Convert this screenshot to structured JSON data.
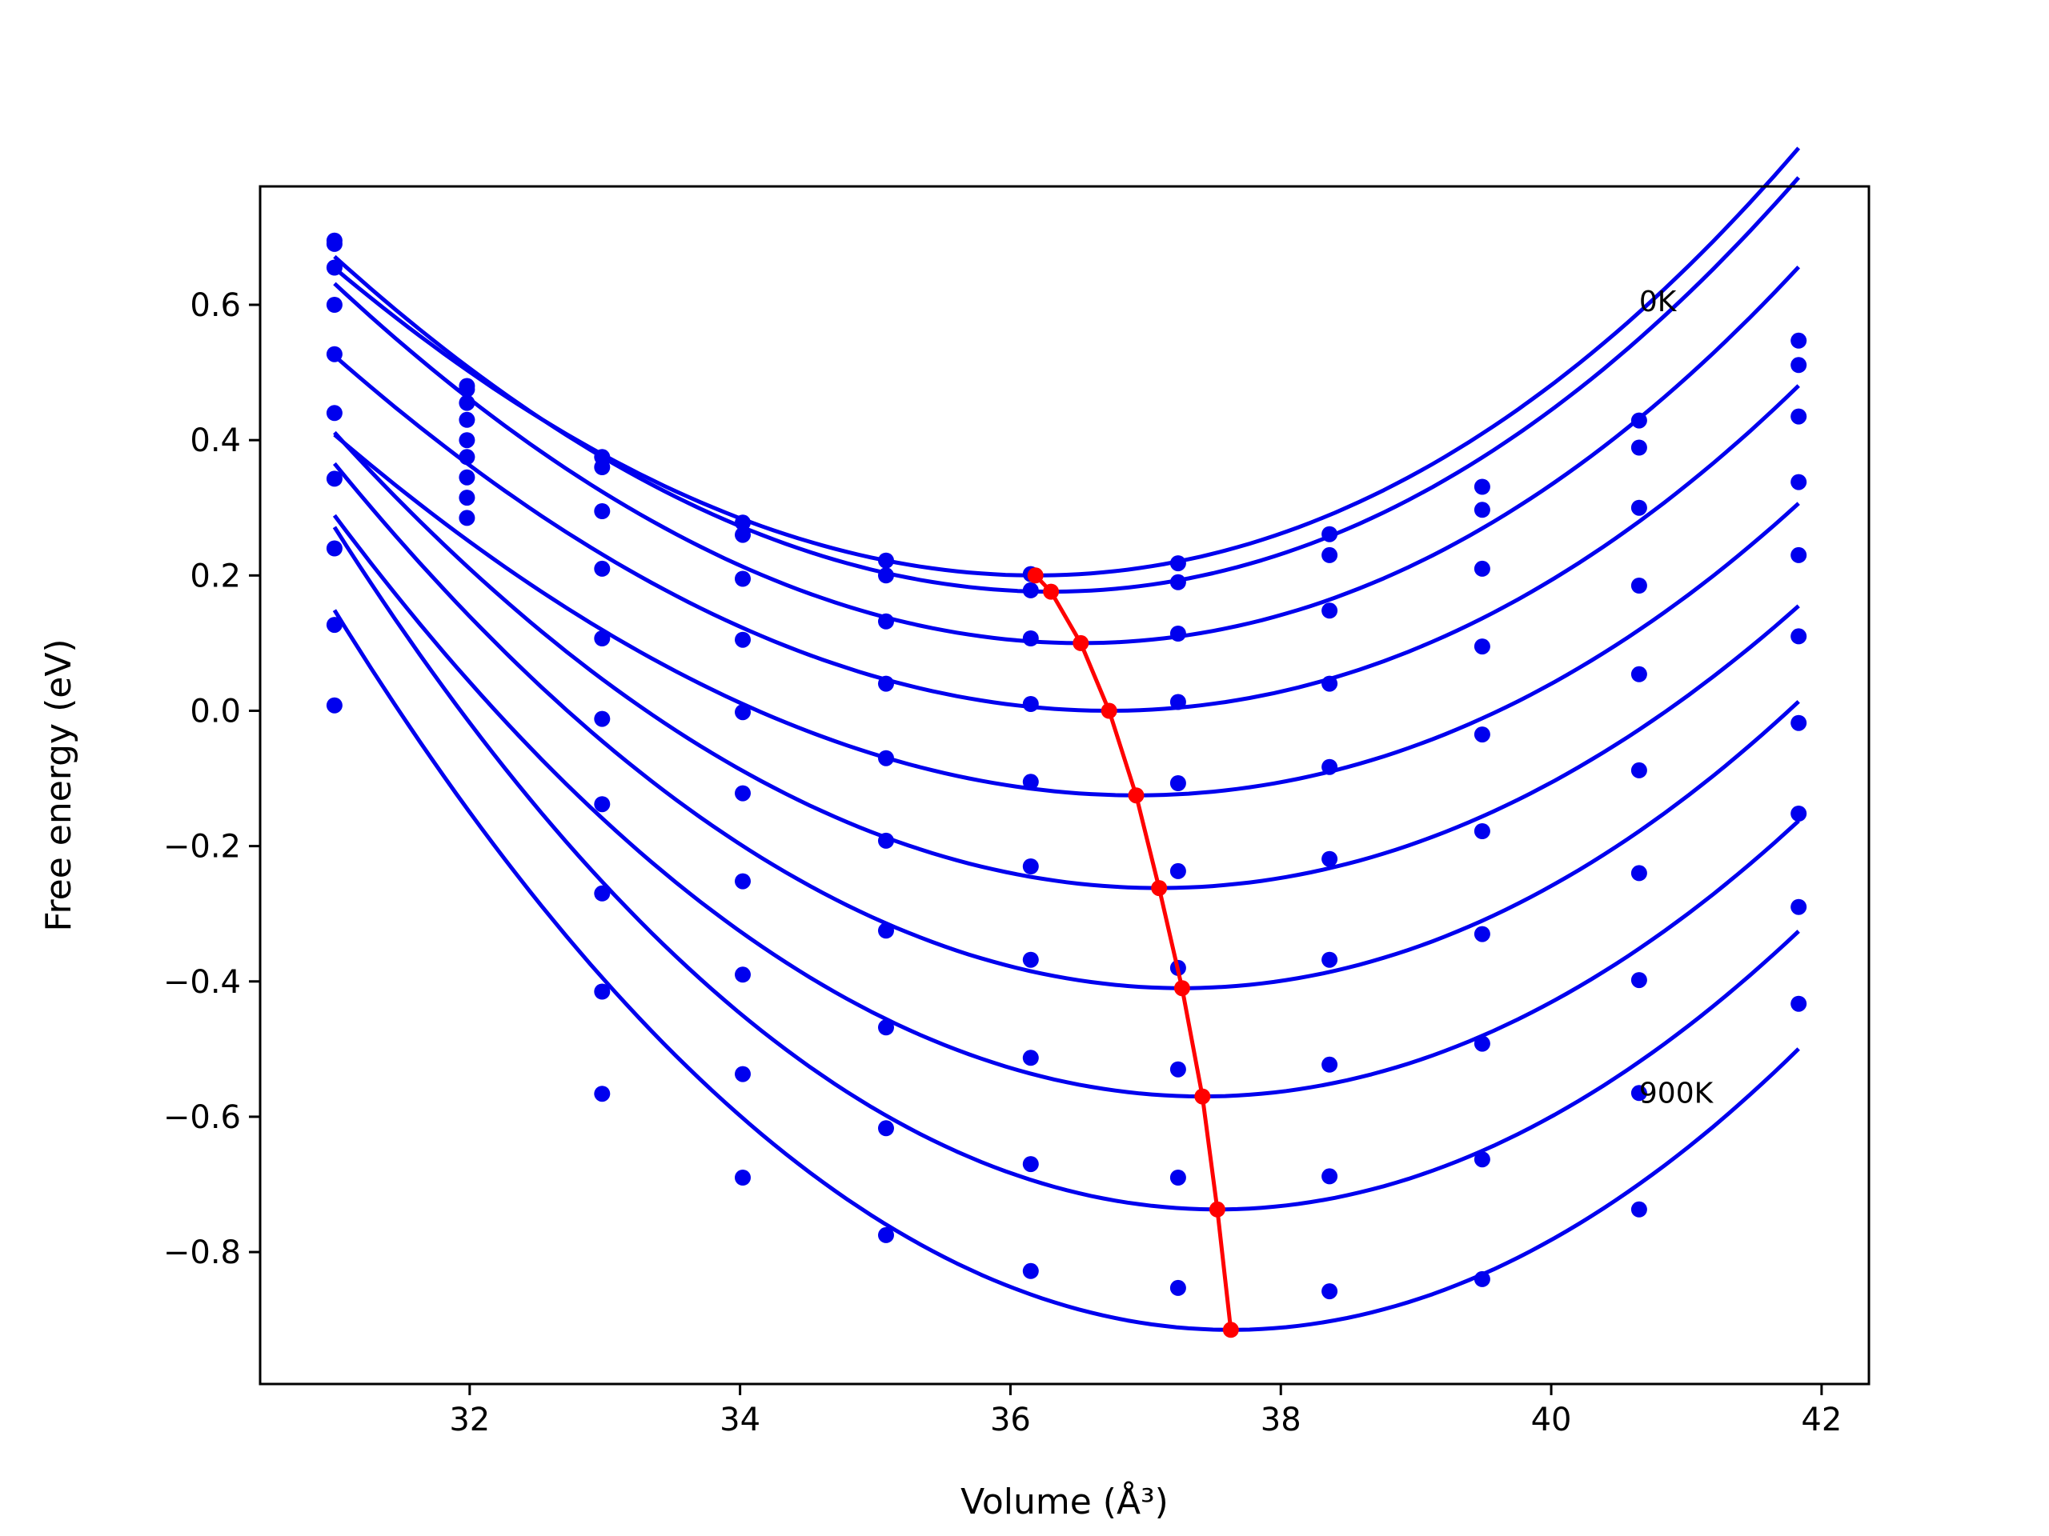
{
  "chart_data": {
    "type": "line",
    "title": "",
    "xlabel": "Volume (Å³)",
    "ylabel": "Free energy (eV)",
    "xlim": [
      30.45,
      42.35
    ],
    "ylim": [
      -0.995,
      0.775
    ],
    "grid": false,
    "legend": "none",
    "x_ticks": [
      32,
      34,
      36,
      38,
      40,
      42
    ],
    "x_tick_labels": [
      "32",
      "34",
      "36",
      "38",
      "40",
      "42"
    ],
    "y_ticks": [
      0.6,
      0.4,
      0.2,
      0.0,
      -0.2,
      -0.4,
      -0.6,
      -0.8
    ],
    "y_tick_labels": [
      "0.6",
      "0.4",
      "0.2",
      "0.0",
      "−0.2",
      "−0.4",
      "−0.6",
      "−0.8"
    ],
    "annotations": [
      {
        "text": "0K",
        "x": 40.65,
        "y": 0.605
      },
      {
        "text": "900K",
        "x": 40.65,
        "y": -0.565
      }
    ],
    "colors": {
      "fits": "#0000ee",
      "points": "#0000ee",
      "minimum_path": "#ff0000"
    },
    "volumes": [
      31.0,
      31.98,
      32.98,
      34.02,
      35.08,
      36.15,
      37.24,
      38.36,
      39.49,
      40.65,
      41.83
    ],
    "fit_range": [
      31.0,
      41.83
    ],
    "series": [
      {
        "points": [
          0.695,
          0.48,
          0.375,
          0.278,
          0.222,
          0.202,
          0.218,
          0.261,
          0.331,
          0.429,
          0.547
        ],
        "fit": {
          "v0": 36.185,
          "e0": 0.2,
          "a": 0.0183,
          "b": 0.00027
        }
      },
      {
        "points": [
          0.69,
          0.475,
          0.36,
          0.26,
          0.2,
          0.178,
          0.19,
          0.23,
          0.297,
          0.389,
          0.511
        ],
        "fit": {
          "v0": 36.3,
          "e0": 0.176,
          "a": 0.0188,
          "b": 0.00022
        }
      },
      {
        "points": [
          0.655,
          0.455,
          0.295,
          0.195,
          0.132,
          0.107,
          0.114,
          0.148,
          0.21,
          0.3,
          0.435
        ],
        "fit": {
          "v0": 36.52,
          "e0": 0.1,
          "a": 0.0186,
          "b": 0.00021
        }
      },
      {
        "points": [
          0.6,
          0.43,
          0.21,
          0.105,
          0.04,
          0.01,
          0.013,
          0.04,
          0.095,
          0.185,
          0.338
        ],
        "fit": {
          "v0": 36.73,
          "e0": 0.0,
          "a": 0.0173,
          "b": 0.00023
        }
      },
      {
        "points": [
          0.527,
          0.4,
          0.107,
          -0.002,
          -0.07,
          -0.105,
          -0.107,
          -0.083,
          -0.035,
          0.054,
          0.23
        ],
        "fit": {
          "v0": 36.93,
          "e0": -0.125,
          "a": 0.0167,
          "b": 0.00026
        }
      },
      {
        "points": [
          0.44,
          0.375,
          -0.012,
          -0.122,
          -0.192,
          -0.23,
          -0.237,
          -0.219,
          -0.178,
          -0.088,
          0.11
        ],
        "fit": {
          "v0": 37.1,
          "e0": -0.262,
          "a": 0.0184,
          "b": 5e-05
        }
      },
      {
        "points": [
          0.343,
          0.345,
          -0.138,
          -0.252,
          -0.325,
          -0.368,
          -0.38,
          -0.368,
          -0.33,
          -0.24,
          -0.018
        ],
        "fit": {
          "v0": 37.27,
          "e0": -0.41,
          "a": 0.0201,
          "b": 6e-05
        }
      },
      {
        "points": [
          0.24,
          0.315,
          -0.27,
          -0.39,
          -0.468,
          -0.513,
          -0.53,
          -0.523,
          -0.492,
          -0.398,
          -0.152
        ],
        "fit": {
          "v0": 37.42,
          "e0": -0.57,
          "a": 0.0209,
          "b": 1e-05
        }
      },
      {
        "points": [
          0.127,
          0.285,
          -0.415,
          -0.537,
          -0.617,
          -0.67,
          -0.69,
          -0.688,
          -0.663,
          -0.565,
          -0.29
        ],
        "fit": {
          "v0": 37.53,
          "e0": -0.737,
          "a": 0.0228,
          "b": -0.00013
        }
      },
      {
        "points": [
          0.008,
          null,
          -0.566,
          -0.69,
          -0.775,
          -0.828,
          -0.853,
          -0.858,
          -0.84,
          -0.737,
          -0.433
        ],
        "fit": {
          "v0": 37.63,
          "e0": -0.915,
          "a": 0.0238,
          "b": -6e-05
        }
      }
    ],
    "minimum_path": {
      "x": [
        36.185,
        36.3,
        36.52,
        36.73,
        36.93,
        37.1,
        37.27,
        37.42,
        37.53,
        37.63
      ],
      "y": [
        0.2,
        0.176,
        0.1,
        0.0,
        -0.125,
        -0.262,
        -0.41,
        -0.57,
        -0.737,
        -0.915
      ]
    }
  }
}
